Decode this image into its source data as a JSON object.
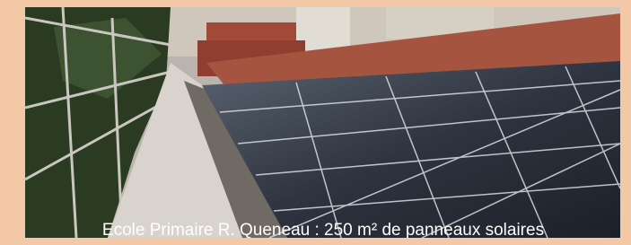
{
  "caption": "Ecole Primaire R. Queneau : 250 m² de panneaux solaires"
}
